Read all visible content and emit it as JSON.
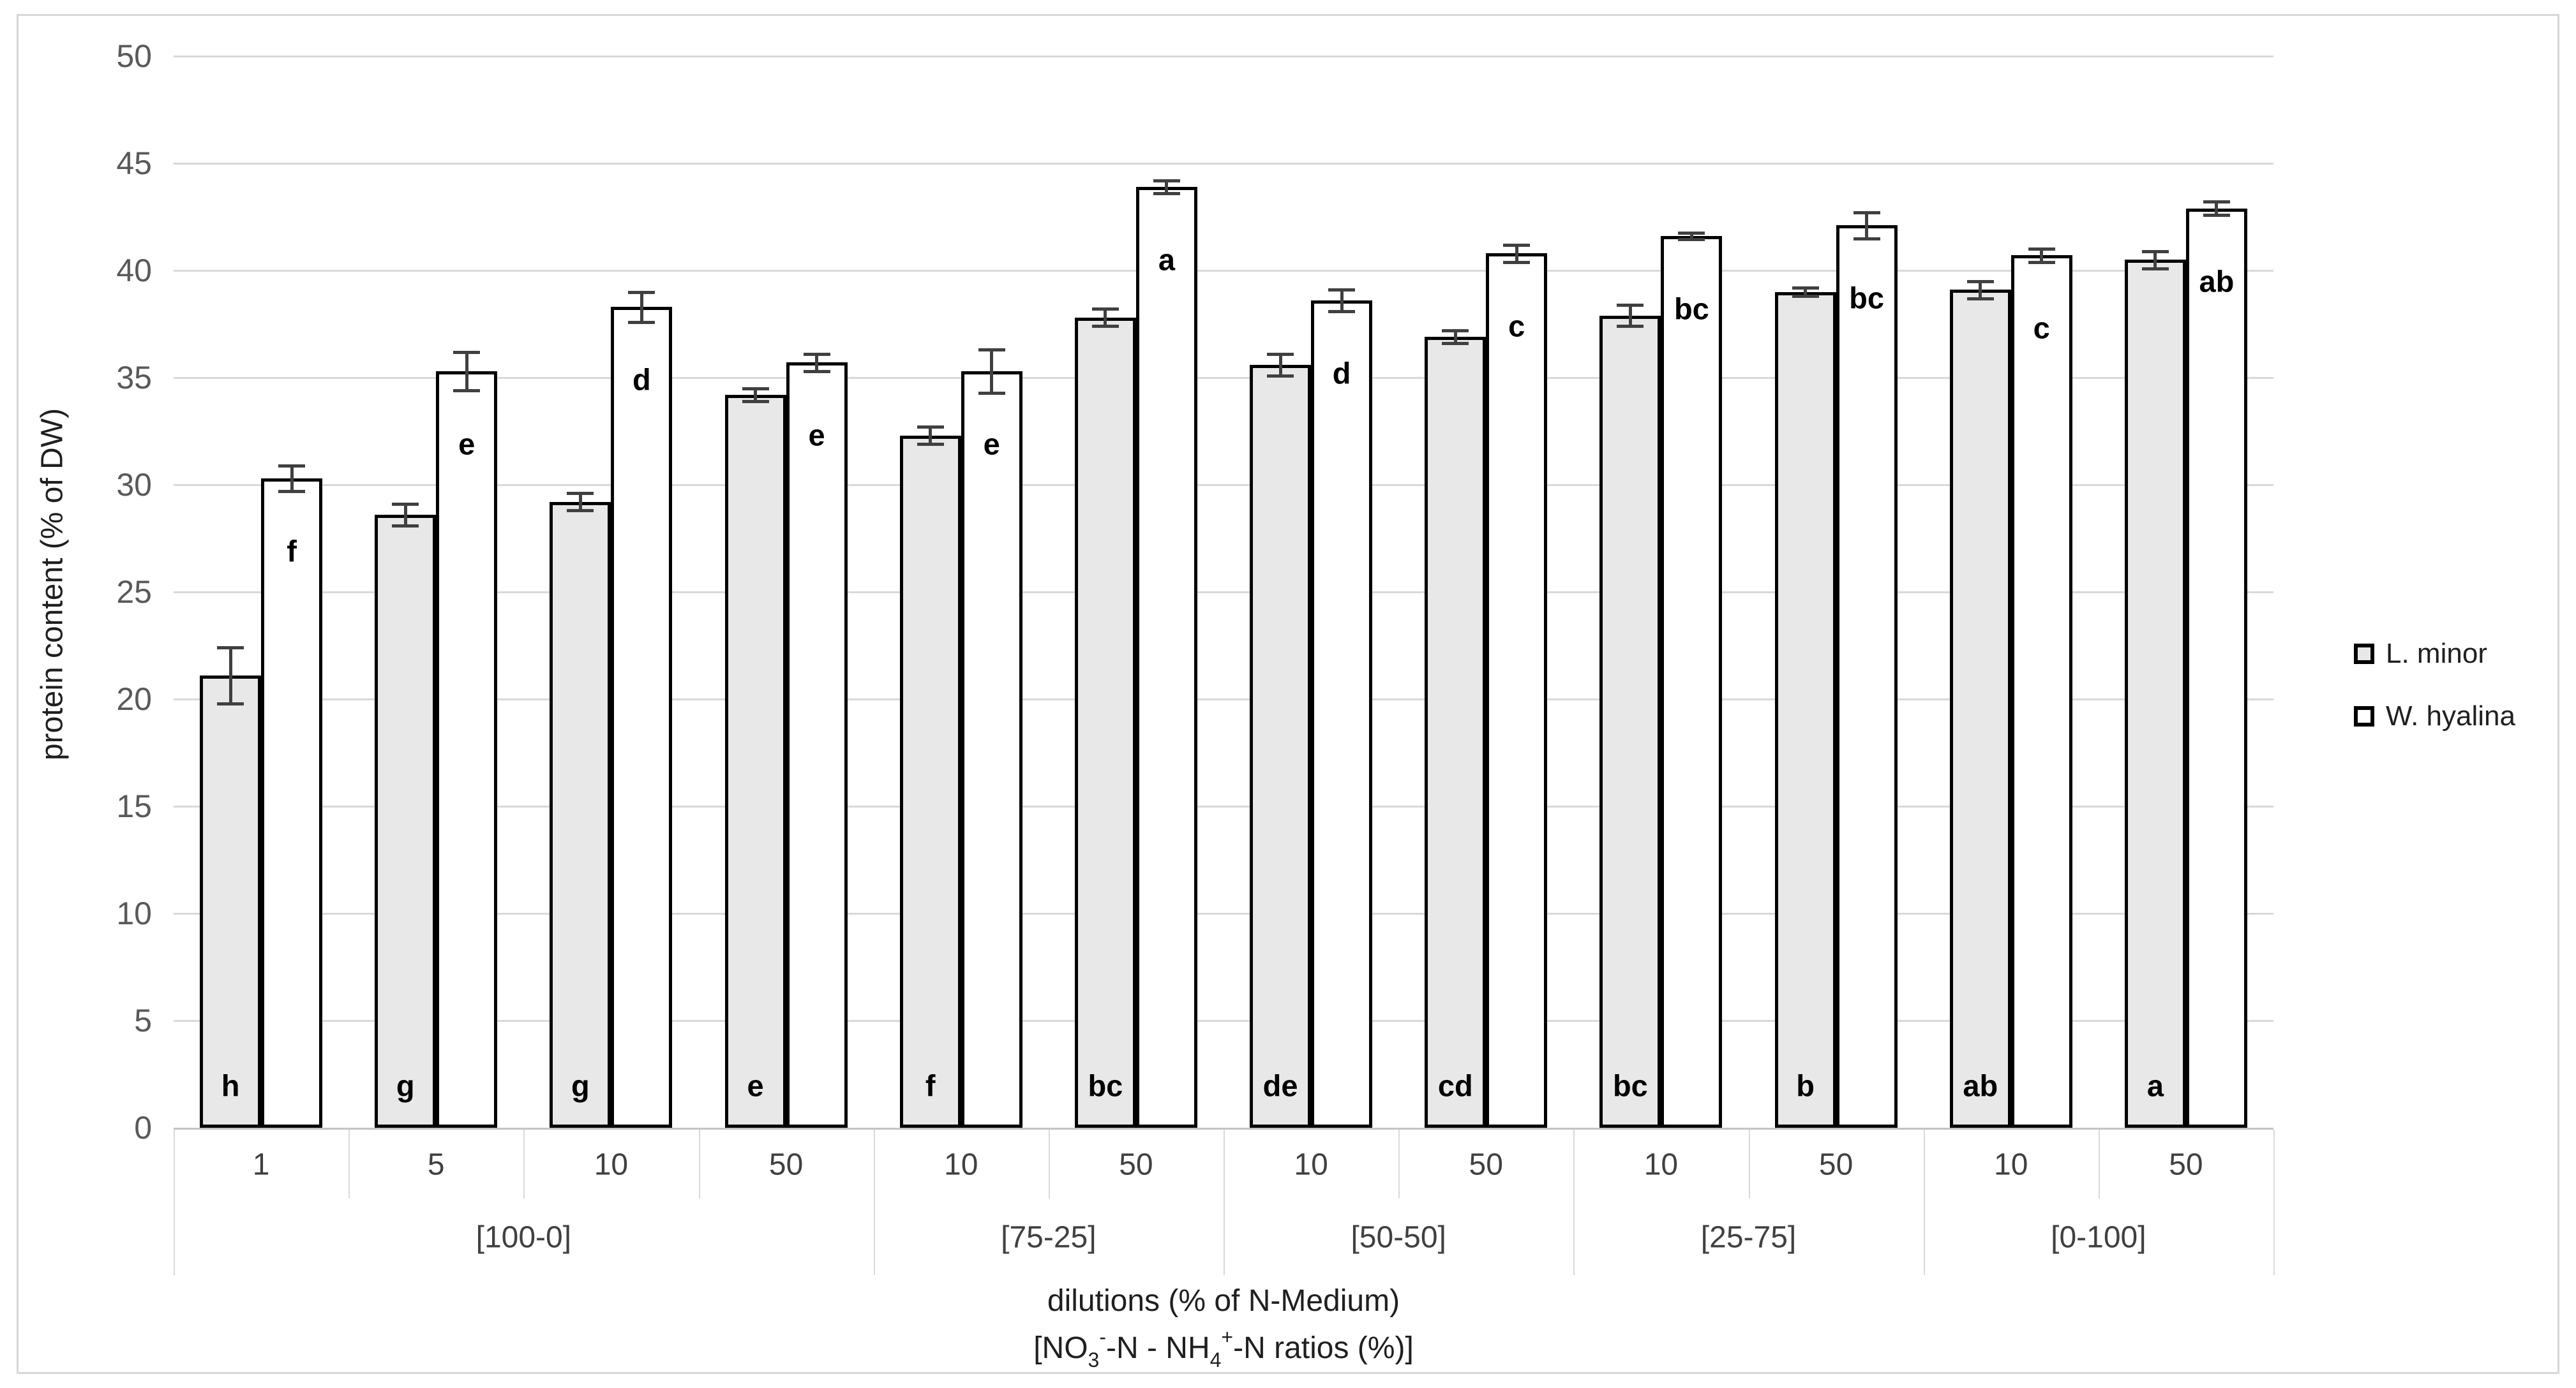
{
  "chart_data": {
    "type": "bar",
    "title": "",
    "ylabel": "protein content (% of DW)",
    "xlabel_line1": "dilutions (% of N-Medium)",
    "xlabel_line2_text": "[NO3(-)-N - NH4(+)-N ratios (%)]",
    "xlabel_line2_segments": [
      {
        "text": "[NO",
        "style": "normal"
      },
      {
        "text": "3",
        "style": "sub"
      },
      {
        "text": "-",
        "style": "sup"
      },
      {
        "text": "-N - NH",
        "style": "normal"
      },
      {
        "text": "4",
        "style": "sub"
      },
      {
        "text": "+",
        "style": "sup"
      },
      {
        "text": "-N ratios (%)]",
        "style": "normal"
      }
    ],
    "ylim": [
      0,
      50
    ],
    "ytick_step": 5,
    "yticks": [
      0,
      5,
      10,
      15,
      20,
      25,
      30,
      35,
      40,
      45,
      50
    ],
    "grid": true,
    "legend_position": "right",
    "series": [
      {
        "name": "L. minor",
        "fill": "#e8e8e8"
      },
      {
        "name": "W. hyalina",
        "fill": "#ffffff"
      }
    ],
    "groups": [
      {
        "ratio": "[100-0]",
        "items": [
          {
            "dilution": "1",
            "bars": [
              {
                "value": 21.1,
                "err": 1.3,
                "letter": "h"
              },
              {
                "value": 30.3,
                "err": 0.6,
                "letter": "f"
              }
            ]
          },
          {
            "dilution": "5",
            "bars": [
              {
                "value": 28.6,
                "err": 0.5,
                "letter": "g"
              },
              {
                "value": 35.3,
                "err": 0.9,
                "letter": "e"
              }
            ]
          },
          {
            "dilution": "10",
            "bars": [
              {
                "value": 29.2,
                "err": 0.4,
                "letter": "g"
              },
              {
                "value": 38.3,
                "err": 0.7,
                "letter": "d"
              }
            ]
          },
          {
            "dilution": "50",
            "bars": [
              {
                "value": 34.2,
                "err": 0.3,
                "letter": "e"
              },
              {
                "value": 35.7,
                "err": 0.4,
                "letter": "e"
              }
            ]
          }
        ]
      },
      {
        "ratio": "[75-25]",
        "items": [
          {
            "dilution": "10",
            "bars": [
              {
                "value": 32.3,
                "err": 0.4,
                "letter": "f"
              },
              {
                "value": 35.3,
                "err": 1.0,
                "letter": "e"
              }
            ]
          },
          {
            "dilution": "50",
            "bars": [
              {
                "value": 37.8,
                "err": 0.4,
                "letter": "bc"
              },
              {
                "value": 43.9,
                "err": 0.3,
                "letter": "a"
              }
            ]
          }
        ]
      },
      {
        "ratio": "[50-50]",
        "items": [
          {
            "dilution": "10",
            "bars": [
              {
                "value": 35.6,
                "err": 0.5,
                "letter": "de"
              },
              {
                "value": 38.6,
                "err": 0.5,
                "letter": "d"
              }
            ]
          },
          {
            "dilution": "50",
            "bars": [
              {
                "value": 36.9,
                "err": 0.3,
                "letter": "cd"
              },
              {
                "value": 40.8,
                "err": 0.4,
                "letter": "c"
              }
            ]
          }
        ]
      },
      {
        "ratio": "[25-75]",
        "items": [
          {
            "dilution": "10",
            "bars": [
              {
                "value": 37.9,
                "err": 0.5,
                "letter": "bc"
              },
              {
                "value": 41.6,
                "err": 0.15,
                "letter": "bc"
              }
            ]
          },
          {
            "dilution": "50",
            "bars": [
              {
                "value": 39.0,
                "err": 0.2,
                "letter": "b"
              },
              {
                "value": 42.1,
                "err": 0.6,
                "letter": "bc"
              }
            ]
          }
        ]
      },
      {
        "ratio": "[0-100]",
        "items": [
          {
            "dilution": "10",
            "bars": [
              {
                "value": 39.1,
                "err": 0.4,
                "letter": "ab"
              },
              {
                "value": 40.7,
                "err": 0.3,
                "letter": "c"
              }
            ]
          },
          {
            "dilution": "50",
            "bars": [
              {
                "value": 40.5,
                "err": 0.4,
                "letter": "a"
              },
              {
                "value": 42.9,
                "err": 0.3,
                "letter": "ab"
              }
            ]
          }
        ]
      }
    ]
  }
}
